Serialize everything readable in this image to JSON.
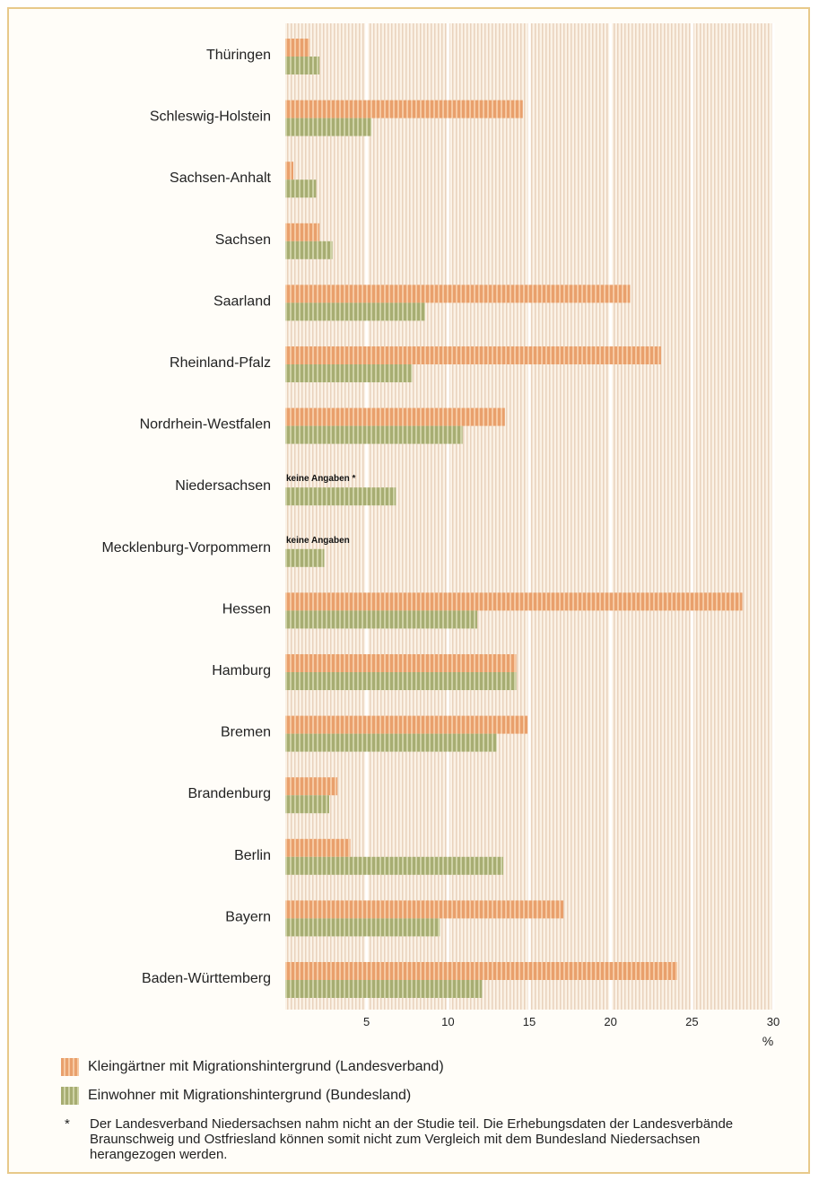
{
  "chart_data": {
    "type": "bar",
    "orientation": "horizontal",
    "title": "",
    "xlabel": "",
    "ylabel": "",
    "unit": "%",
    "xlim": [
      0,
      30
    ],
    "ticks": [
      "5",
      "10",
      "15",
      "20",
      "25",
      "30"
    ],
    "grid": true,
    "legend_position": "bottom",
    "categories": [
      "Thüringen",
      "Schleswig-Holstein",
      "Sachsen-Anhalt",
      "Sachsen",
      "Saarland",
      "Rheinland-Pfalz",
      "Nordrhein-Westfalen",
      "Niedersachsen",
      "Mecklenburg-Vorpommern",
      "Hessen",
      "Hamburg",
      "Bremen",
      "Brandenburg",
      "Berlin",
      "Bayern",
      "Baden-Württemberg"
    ],
    "series": [
      {
        "name": "Kleingärtner mit Migrationshintergrund (Landesverband)",
        "color": "#e9a06c",
        "values": [
          1.5,
          14.6,
          0.5,
          2.1,
          21.2,
          23.1,
          13.5,
          null,
          null,
          28.1,
          14.2,
          14.9,
          3.2,
          4.0,
          17.1,
          24.1
        ]
      },
      {
        "name": "Einwohner mit Migrationshintergrund (Bundesland)",
        "color": "#a7ad72",
        "values": [
          2.1,
          5.3,
          1.9,
          2.9,
          8.6,
          7.8,
          10.9,
          6.8,
          2.4,
          11.8,
          14.2,
          13.0,
          2.7,
          13.4,
          9.5,
          12.1
        ]
      }
    ],
    "annotations": [
      {
        "category": "Niedersachsen",
        "text": "keine Angaben *"
      },
      {
        "category": "Mecklenburg-Vorpommern",
        "text": "keine Angaben"
      }
    ]
  },
  "footnote": {
    "mark": "*",
    "text": "Der Landesverband Niedersachsen nahm nicht an der Studie teil. Die Erhebungsdaten der Landesverbände Braunschweig und Ostfriesland können somit nicht zum Vergleich mit dem Bundesland Niedersachsen herangezogen werden."
  }
}
